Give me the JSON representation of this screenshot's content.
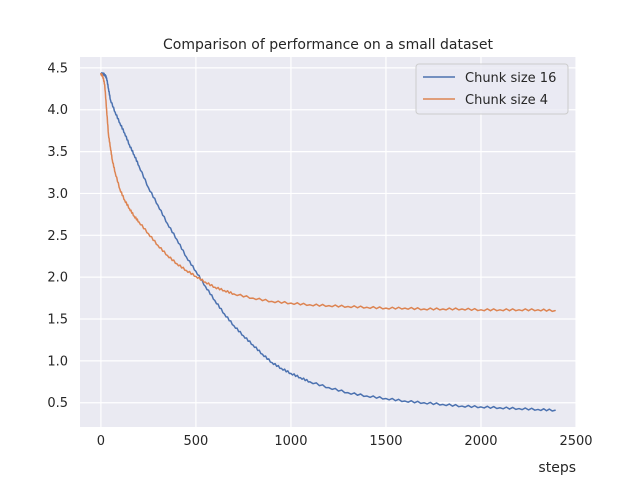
{
  "chart_data": {
    "type": "line",
    "title": "Comparison of performance on a small dataset",
    "xlabel": "steps",
    "ylabel": "",
    "xlim": [
      -110,
      2500
    ],
    "ylim": [
      0.21,
      4.63
    ],
    "xticks": [
      0,
      500,
      1000,
      1500,
      2000,
      2500
    ],
    "yticks": [
      0.5,
      1.0,
      1.5,
      2.0,
      2.5,
      3.0,
      3.5,
      4.0,
      4.5
    ],
    "xtick_labels": [
      "0",
      "500",
      "1000",
      "1500",
      "2000",
      "2500"
    ],
    "ytick_labels": [
      "0.5",
      "1.0",
      "1.5",
      "2.0",
      "2.5",
      "3.0",
      "3.5",
      "4.0",
      "4.5"
    ],
    "grid": true,
    "legend_position": "top-right",
    "series": [
      {
        "name": "Chunk size 16",
        "color": "#4c72b0",
        "x": [
          0,
          10,
          20,
          30,
          40,
          50,
          75,
          100,
          125,
          150,
          175,
          200,
          250,
          300,
          350,
          400,
          450,
          500,
          550,
          600,
          650,
          700,
          750,
          800,
          850,
          900,
          950,
          1000,
          1050,
          1100,
          1200,
          1300,
          1400,
          1500,
          1600,
          1700,
          1800,
          1900,
          2000,
          2100,
          2200,
          2300,
          2390
        ],
        "y": [
          4.43,
          4.43,
          4.42,
          4.38,
          4.25,
          4.12,
          3.97,
          3.84,
          3.72,
          3.58,
          3.46,
          3.33,
          3.07,
          2.86,
          2.64,
          2.45,
          2.24,
          2.07,
          1.89,
          1.72,
          1.56,
          1.42,
          1.3,
          1.19,
          1.08,
          0.98,
          0.91,
          0.85,
          0.8,
          0.75,
          0.68,
          0.62,
          0.58,
          0.55,
          0.52,
          0.5,
          0.48,
          0.46,
          0.45,
          0.44,
          0.43,
          0.42,
          0.41
        ]
      },
      {
        "name": "Chunk size 4",
        "color": "#dd8452",
        "x": [
          0,
          10,
          20,
          30,
          40,
          50,
          60,
          75,
          100,
          125,
          150,
          175,
          200,
          250,
          300,
          350,
          400,
          450,
          500,
          550,
          600,
          650,
          700,
          800,
          900,
          1000,
          1100,
          1200,
          1300,
          1400,
          1500,
          1600,
          1700,
          1800,
          1900,
          2000,
          2100,
          2200,
          2300,
          2390
        ],
        "y": [
          4.43,
          4.4,
          4.3,
          4.0,
          3.7,
          3.55,
          3.4,
          3.25,
          3.05,
          2.92,
          2.82,
          2.73,
          2.66,
          2.52,
          2.38,
          2.26,
          2.16,
          2.08,
          2.01,
          1.94,
          1.88,
          1.84,
          1.8,
          1.75,
          1.71,
          1.69,
          1.67,
          1.66,
          1.65,
          1.64,
          1.63,
          1.63,
          1.62,
          1.62,
          1.62,
          1.61,
          1.61,
          1.61,
          1.61,
          1.6
        ]
      }
    ]
  }
}
